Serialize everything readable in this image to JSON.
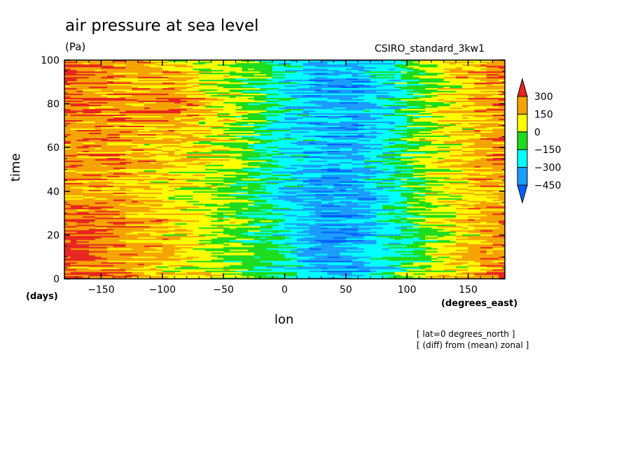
{
  "chart_data": {
    "type": "heatmap",
    "title": "air pressure at sea level",
    "units": "(Pa)",
    "model": "CSIRO_standard_3kw1",
    "xlabel": "lon",
    "x_units": "(degrees_east)",
    "ylabel": "time",
    "y_units": "(days)",
    "xlim": [
      -180,
      180
    ],
    "ylim": [
      0,
      100
    ],
    "x_ticks": [
      -150,
      -100,
      -50,
      0,
      50,
      100,
      150
    ],
    "y_ticks": [
      0,
      20,
      40,
      60,
      80,
      100
    ],
    "notes": [
      "[ lat=0 degrees_north ]",
      "[ (diff) from (mean) zonal ]"
    ],
    "colorbar": {
      "labels": [
        "300",
        "150",
        "0",
        "−150",
        "−300",
        "−450"
      ],
      "levels": [
        300,
        150,
        0,
        -150,
        -300,
        -450
      ],
      "colors": [
        "#e8251f",
        "#f5a300",
        "#ffff00",
        "#1ddc1d",
        "#00ffff",
        "#1a9dff",
        "#0060ff"
      ]
    },
    "pattern": {
      "x": [
        -180,
        -150,
        -120,
        -90,
        -60,
        -30,
        0,
        30,
        60,
        90,
        120,
        150,
        180
      ],
      "y": [
        0,
        20,
        40,
        60,
        80,
        100
      ],
      "z": [
        [
          280,
          220,
          160,
          80,
          20,
          -80,
          -200,
          -380,
          -330,
          -180,
          40,
          160,
          260
        ],
        [
          300,
          290,
          230,
          130,
          40,
          -60,
          -230,
          -380,
          -380,
          -220,
          0,
          120,
          230
        ],
        [
          230,
          220,
          180,
          100,
          30,
          -60,
          -250,
          -360,
          -330,
          -170,
          40,
          150,
          220
        ],
        [
          250,
          220,
          180,
          150,
          60,
          -40,
          -250,
          -340,
          -320,
          -170,
          40,
          170,
          250
        ],
        [
          300,
          260,
          220,
          300,
          120,
          -20,
          -220,
          -340,
          -360,
          -200,
          10,
          150,
          260
        ],
        [
          320,
          280,
          220,
          120,
          50,
          -30,
          -180,
          -330,
          -320,
          -160,
          60,
          180,
          280
        ]
      ]
    }
  }
}
